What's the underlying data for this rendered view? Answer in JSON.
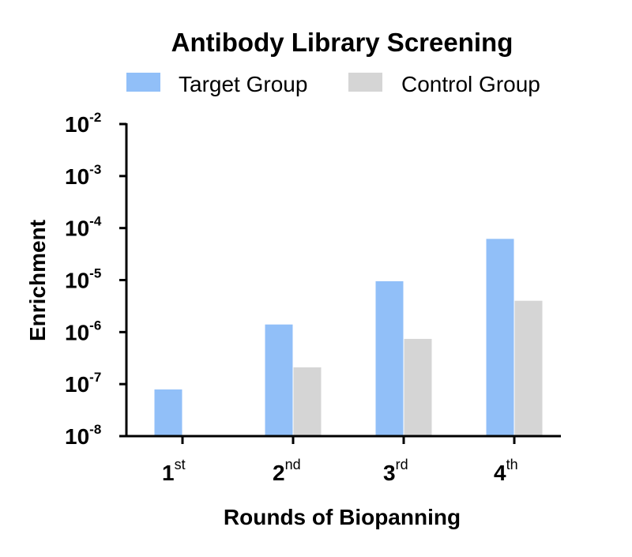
{
  "chart_data": {
    "type": "bar",
    "title": "Antibody Library Screening",
    "xlabel": "Rounds of Biopanning",
    "ylabel": "Enrichment",
    "yscale": "log",
    "ylim": [
      1e-08,
      0.01
    ],
    "yticks": [
      {
        "base": "10",
        "exp": "-2"
      },
      {
        "base": "10",
        "exp": "-3"
      },
      {
        "base": "10",
        "exp": "-4"
      },
      {
        "base": "10",
        "exp": "-5"
      },
      {
        "base": "10",
        "exp": "-6"
      },
      {
        "base": "10",
        "exp": "-7"
      },
      {
        "base": "10",
        "exp": "-8"
      }
    ],
    "categories": [
      {
        "main": "1",
        "sup": "st"
      },
      {
        "main": "2",
        "sup": "nd"
      },
      {
        "main": "3",
        "sup": "rd"
      },
      {
        "main": "4",
        "sup": "th"
      }
    ],
    "series": [
      {
        "name": "Target Group",
        "color": "#91bff8",
        "values": [
          7.9e-08,
          1.4e-06,
          9.5e-06,
          6.2e-05
        ]
      },
      {
        "name": "Control Group",
        "color": "#d5d5d5",
        "values": [
          null,
          2.1e-07,
          7.4e-07,
          4e-06
        ]
      }
    ],
    "legend_position": "top",
    "grid": false
  }
}
